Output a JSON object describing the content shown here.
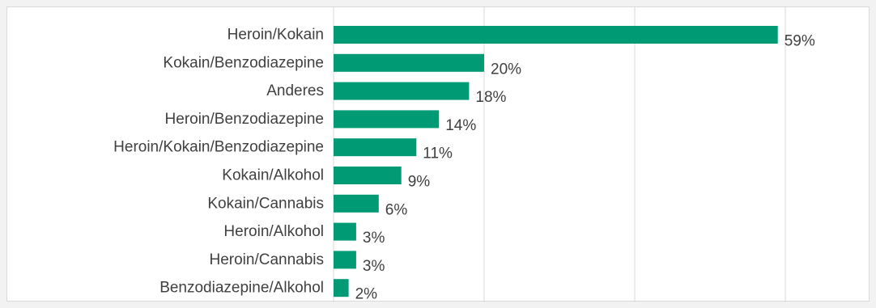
{
  "chart_data": {
    "type": "bar",
    "orientation": "horizontal",
    "title": "",
    "xlabel": "",
    "ylabel": "",
    "categories": [
      "Heroin/Kokain",
      "Kokain/Benzodiazepine",
      "Anderes",
      "Heroin/Benzodiazepine",
      "Heroin/Kokain/Benzodiazepine",
      "Kokain/Alkohol",
      "Kokain/Cannabis",
      "Heroin/Alkohol",
      "Heroin/Cannabis",
      "Benzodiazepine/Alkohol"
    ],
    "values": [
      59,
      20,
      18,
      14,
      11,
      9,
      6,
      3,
      3,
      2
    ],
    "value_labels": [
      "59%",
      "20%",
      "18%",
      "14%",
      "11%",
      "9%",
      "6%",
      "3%",
      "3%",
      "2%"
    ],
    "xlim": [
      0,
      70
    ],
    "grid": true,
    "gridlines_at": [
      0,
      20,
      40,
      60
    ],
    "tick_labels_shown": false,
    "legend": "none",
    "colors": {
      "bar": "#009a74",
      "grid": "#d9d9d9",
      "text": "#404040",
      "page_background": "#f2f2f2",
      "plot_background": "#ffffff"
    }
  }
}
